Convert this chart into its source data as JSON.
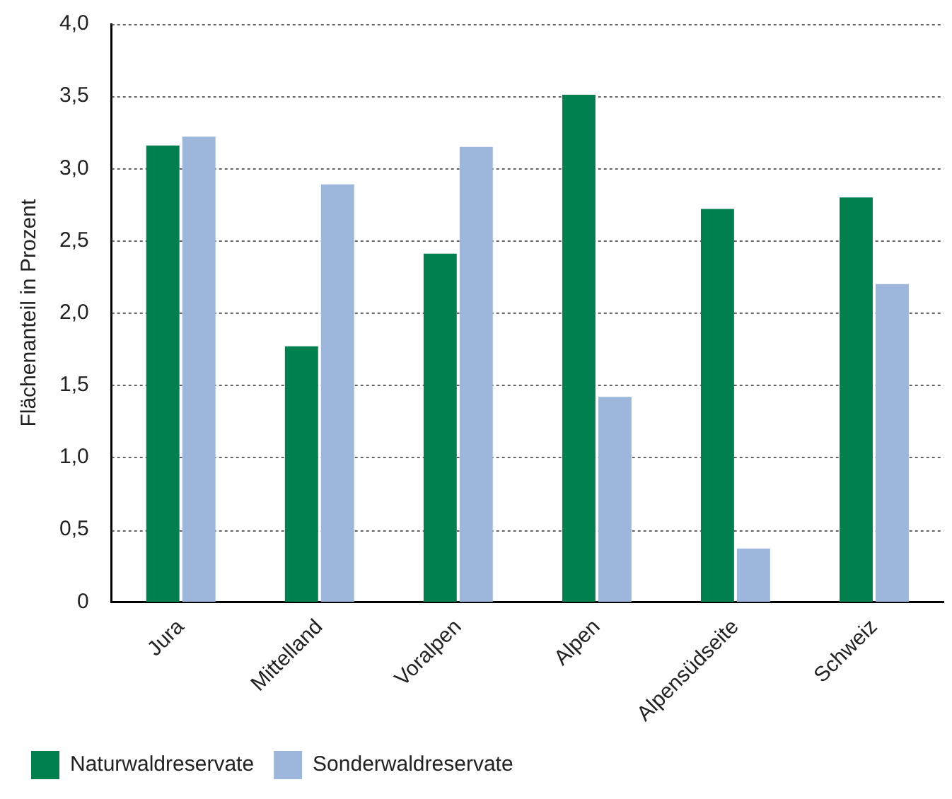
{
  "chart_data": {
    "type": "bar",
    "ylabel": "Flächenanteil in Prozent",
    "categories": [
      "Jura",
      "Mittelland",
      "Voralpen",
      "Alpen",
      "Alpensüdseite",
      "Schweiz"
    ],
    "series": [
      {
        "name": "Naturwaldreservate",
        "color": "#00804f",
        "values": [
          3.16,
          1.77,
          2.41,
          3.51,
          2.72,
          2.8
        ]
      },
      {
        "name": "Sonderwaldreservate",
        "color": "#9db7dc",
        "values": [
          3.22,
          2.89,
          3.15,
          1.42,
          0.37,
          2.2
        ]
      }
    ],
    "ylim": [
      0,
      4
    ],
    "yticks": [
      0,
      {
        "value": 0.5,
        "label": "0,5"
      },
      {
        "value": 1,
        "label": "1,0"
      },
      {
        "value": 1.5,
        "label": "1,5"
      },
      {
        "value": 2,
        "label": "2,0"
      },
      {
        "value": 2.5,
        "label": "2,5"
      },
      {
        "value": 3,
        "label": "3,0"
      },
      {
        "value": 3.5,
        "label": "3,5"
      },
      {
        "value": 4,
        "label": "4,0"
      }
    ],
    "grid": "y",
    "legend": "bottom left"
  }
}
